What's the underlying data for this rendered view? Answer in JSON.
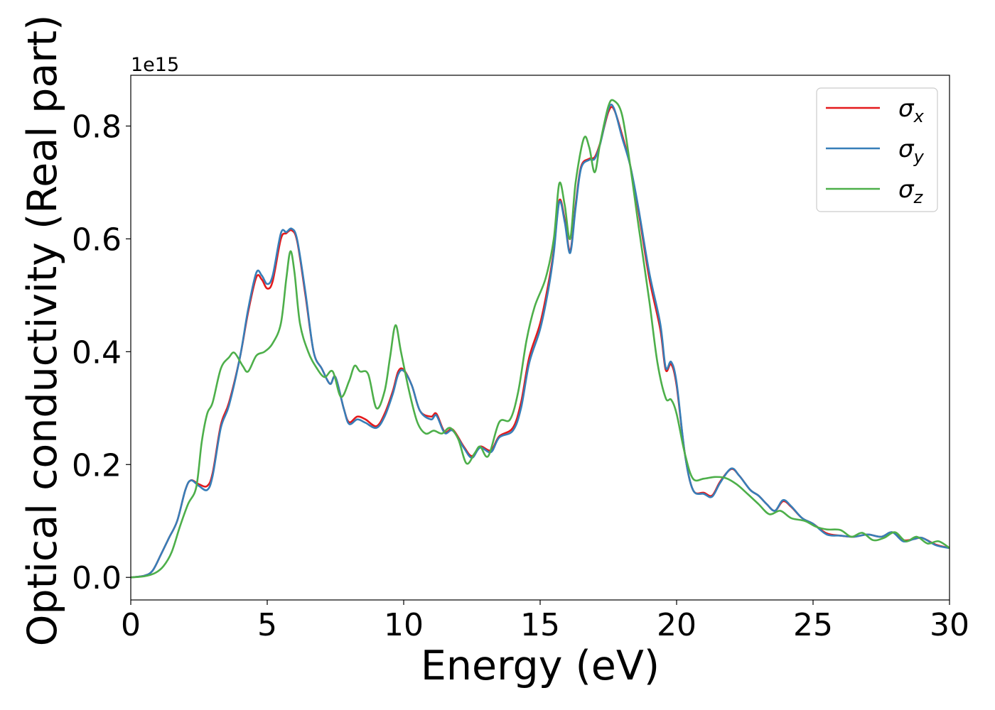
{
  "chart_data": {
    "type": "line",
    "xlabel": "Energy (eV)",
    "ylabel": "Optical conductivity (Real part)",
    "y_offset_label": "1e15",
    "xlim": [
      0,
      30
    ],
    "ylim": [
      -0.04,
      0.89
    ],
    "x_ticks": [
      0,
      5,
      10,
      15,
      20,
      25,
      30
    ],
    "x_tick_labels": [
      "0",
      "5",
      "10",
      "15",
      "20",
      "25",
      "30"
    ],
    "y_ticks": [
      0.0,
      0.2,
      0.4,
      0.6,
      0.8
    ],
    "y_tick_labels": [
      "0.0",
      "0.2",
      "0.4",
      "0.6",
      "0.8"
    ],
    "grid": false,
    "legend_position": "top-right",
    "series": [
      {
        "name": "σ",
        "subscript": "x",
        "color": "#e41a1c",
        "points": [
          [
            0,
            0.0
          ],
          [
            0.5,
            0.003
          ],
          [
            0.8,
            0.012
          ],
          [
            1.1,
            0.04
          ],
          [
            1.4,
            0.07
          ],
          [
            1.7,
            0.1
          ],
          [
            2.0,
            0.155
          ],
          [
            2.2,
            0.172
          ],
          [
            2.5,
            0.165
          ],
          [
            2.8,
            0.162
          ],
          [
            3.0,
            0.185
          ],
          [
            3.3,
            0.27
          ],
          [
            3.6,
            0.31
          ],
          [
            4.0,
            0.39
          ],
          [
            4.3,
            0.47
          ],
          [
            4.6,
            0.532
          ],
          [
            4.8,
            0.528
          ],
          [
            5.0,
            0.512
          ],
          [
            5.2,
            0.525
          ],
          [
            5.5,
            0.6
          ],
          [
            5.7,
            0.61
          ],
          [
            5.9,
            0.615
          ],
          [
            6.1,
            0.595
          ],
          [
            6.4,
            0.5
          ],
          [
            6.7,
            0.4
          ],
          [
            7.0,
            0.37
          ],
          [
            7.3,
            0.343
          ],
          [
            7.5,
            0.355
          ],
          [
            7.8,
            0.3
          ],
          [
            8.0,
            0.275
          ],
          [
            8.3,
            0.285
          ],
          [
            8.6,
            0.28
          ],
          [
            9.0,
            0.268
          ],
          [
            9.3,
            0.29
          ],
          [
            9.6,
            0.33
          ],
          [
            9.8,
            0.365
          ],
          [
            10.0,
            0.368
          ],
          [
            10.3,
            0.34
          ],
          [
            10.6,
            0.295
          ],
          [
            11.0,
            0.285
          ],
          [
            11.2,
            0.29
          ],
          [
            11.5,
            0.258
          ],
          [
            11.8,
            0.262
          ],
          [
            12.2,
            0.232
          ],
          [
            12.5,
            0.215
          ],
          [
            12.8,
            0.232
          ],
          [
            13.2,
            0.225
          ],
          [
            13.5,
            0.25
          ],
          [
            14.0,
            0.265
          ],
          [
            14.3,
            0.31
          ],
          [
            14.6,
            0.39
          ],
          [
            15.0,
            0.45
          ],
          [
            15.3,
            0.52
          ],
          [
            15.5,
            0.58
          ],
          [
            15.7,
            0.668
          ],
          [
            15.9,
            0.635
          ],
          [
            16.1,
            0.578
          ],
          [
            16.3,
            0.66
          ],
          [
            16.5,
            0.728
          ],
          [
            16.8,
            0.742
          ],
          [
            17.0,
            0.745
          ],
          [
            17.2,
            0.77
          ],
          [
            17.5,
            0.825
          ],
          [
            17.7,
            0.83
          ],
          [
            18.0,
            0.785
          ],
          [
            18.3,
            0.73
          ],
          [
            18.6,
            0.65
          ],
          [
            19.0,
            0.53
          ],
          [
            19.4,
            0.44
          ],
          [
            19.6,
            0.368
          ],
          [
            19.8,
            0.378
          ],
          [
            20.0,
            0.34
          ],
          [
            20.3,
            0.22
          ],
          [
            20.6,
            0.155
          ],
          [
            21.0,
            0.15
          ],
          [
            21.3,
            0.145
          ],
          [
            21.6,
            0.17
          ],
          [
            22.0,
            0.192
          ],
          [
            22.3,
            0.18
          ],
          [
            22.7,
            0.155
          ],
          [
            23.0,
            0.145
          ],
          [
            23.3,
            0.13
          ],
          [
            23.6,
            0.118
          ],
          [
            23.9,
            0.135
          ],
          [
            24.2,
            0.125
          ],
          [
            24.6,
            0.105
          ],
          [
            25.0,
            0.095
          ],
          [
            25.5,
            0.078
          ],
          [
            26.0,
            0.074
          ],
          [
            26.5,
            0.072
          ],
          [
            27.0,
            0.076
          ],
          [
            27.5,
            0.072
          ],
          [
            27.9,
            0.08
          ],
          [
            28.3,
            0.066
          ],
          [
            28.7,
            0.068
          ],
          [
            29.0,
            0.07
          ],
          [
            29.5,
            0.058
          ],
          [
            30.0,
            0.052
          ]
        ]
      },
      {
        "name": "σ",
        "subscript": "y",
        "color": "#377eb8",
        "points": [
          [
            0,
            0.0
          ],
          [
            0.5,
            0.003
          ],
          [
            0.8,
            0.012
          ],
          [
            1.1,
            0.04
          ],
          [
            1.4,
            0.07
          ],
          [
            1.7,
            0.1
          ],
          [
            2.0,
            0.155
          ],
          [
            2.2,
            0.172
          ],
          [
            2.5,
            0.162
          ],
          [
            2.8,
            0.155
          ],
          [
            3.0,
            0.18
          ],
          [
            3.3,
            0.265
          ],
          [
            3.6,
            0.305
          ],
          [
            4.0,
            0.39
          ],
          [
            4.3,
            0.475
          ],
          [
            4.6,
            0.54
          ],
          [
            4.8,
            0.535
          ],
          [
            5.0,
            0.52
          ],
          [
            5.2,
            0.535
          ],
          [
            5.5,
            0.61
          ],
          [
            5.7,
            0.612
          ],
          [
            5.9,
            0.618
          ],
          [
            6.1,
            0.598
          ],
          [
            6.4,
            0.505
          ],
          [
            6.7,
            0.4
          ],
          [
            7.0,
            0.37
          ],
          [
            7.3,
            0.343
          ],
          [
            7.5,
            0.355
          ],
          [
            7.8,
            0.3
          ],
          [
            8.0,
            0.272
          ],
          [
            8.3,
            0.28
          ],
          [
            8.6,
            0.274
          ],
          [
            9.0,
            0.265
          ],
          [
            9.3,
            0.285
          ],
          [
            9.6,
            0.325
          ],
          [
            9.8,
            0.36
          ],
          [
            10.0,
            0.366
          ],
          [
            10.3,
            0.34
          ],
          [
            10.6,
            0.295
          ],
          [
            11.0,
            0.28
          ],
          [
            11.2,
            0.287
          ],
          [
            11.5,
            0.256
          ],
          [
            11.8,
            0.26
          ],
          [
            12.2,
            0.23
          ],
          [
            12.5,
            0.212
          ],
          [
            12.8,
            0.23
          ],
          [
            13.2,
            0.222
          ],
          [
            13.5,
            0.248
          ],
          [
            14.0,
            0.26
          ],
          [
            14.3,
            0.3
          ],
          [
            14.6,
            0.38
          ],
          [
            15.0,
            0.44
          ],
          [
            15.3,
            0.51
          ],
          [
            15.5,
            0.575
          ],
          [
            15.7,
            0.665
          ],
          [
            15.9,
            0.63
          ],
          [
            16.1,
            0.575
          ],
          [
            16.3,
            0.655
          ],
          [
            16.5,
            0.725
          ],
          [
            16.8,
            0.74
          ],
          [
            17.0,
            0.742
          ],
          [
            17.2,
            0.768
          ],
          [
            17.5,
            0.83
          ],
          [
            17.7,
            0.832
          ],
          [
            18.0,
            0.78
          ],
          [
            18.3,
            0.73
          ],
          [
            18.6,
            0.655
          ],
          [
            19.0,
            0.54
          ],
          [
            19.4,
            0.45
          ],
          [
            19.6,
            0.372
          ],
          [
            19.8,
            0.382
          ],
          [
            20.0,
            0.345
          ],
          [
            20.3,
            0.22
          ],
          [
            20.6,
            0.155
          ],
          [
            21.0,
            0.148
          ],
          [
            21.3,
            0.143
          ],
          [
            21.6,
            0.168
          ],
          [
            22.0,
            0.193
          ],
          [
            22.3,
            0.18
          ],
          [
            22.7,
            0.155
          ],
          [
            23.0,
            0.145
          ],
          [
            23.3,
            0.13
          ],
          [
            23.6,
            0.118
          ],
          [
            23.9,
            0.137
          ],
          [
            24.2,
            0.126
          ],
          [
            24.6,
            0.105
          ],
          [
            25.0,
            0.095
          ],
          [
            25.5,
            0.076
          ],
          [
            26.0,
            0.074
          ],
          [
            26.5,
            0.072
          ],
          [
            27.0,
            0.076
          ],
          [
            27.5,
            0.072
          ],
          [
            27.9,
            0.08
          ],
          [
            28.3,
            0.064
          ],
          [
            28.7,
            0.068
          ],
          [
            29.0,
            0.07
          ],
          [
            29.5,
            0.057
          ],
          [
            30.0,
            0.052
          ]
        ]
      },
      {
        "name": "σ",
        "subscript": "z",
        "color": "#4daf4a",
        "points": [
          [
            0,
            0.0
          ],
          [
            0.5,
            0.002
          ],
          [
            0.9,
            0.008
          ],
          [
            1.2,
            0.02
          ],
          [
            1.5,
            0.045
          ],
          [
            1.8,
            0.09
          ],
          [
            2.1,
            0.13
          ],
          [
            2.4,
            0.16
          ],
          [
            2.6,
            0.24
          ],
          [
            2.8,
            0.29
          ],
          [
            3.0,
            0.31
          ],
          [
            3.3,
            0.37
          ],
          [
            3.6,
            0.39
          ],
          [
            3.8,
            0.398
          ],
          [
            4.1,
            0.375
          ],
          [
            4.3,
            0.365
          ],
          [
            4.6,
            0.393
          ],
          [
            4.9,
            0.4
          ],
          [
            5.2,
            0.415
          ],
          [
            5.5,
            0.45
          ],
          [
            5.7,
            0.53
          ],
          [
            5.85,
            0.578
          ],
          [
            6.0,
            0.54
          ],
          [
            6.2,
            0.45
          ],
          [
            6.5,
            0.4
          ],
          [
            6.8,
            0.372
          ],
          [
            7.1,
            0.355
          ],
          [
            7.4,
            0.365
          ],
          [
            7.7,
            0.32
          ],
          [
            8.0,
            0.348
          ],
          [
            8.2,
            0.375
          ],
          [
            8.4,
            0.365
          ],
          [
            8.7,
            0.36
          ],
          [
            9.0,
            0.3
          ],
          [
            9.3,
            0.33
          ],
          [
            9.5,
            0.39
          ],
          [
            9.7,
            0.447
          ],
          [
            9.9,
            0.4
          ],
          [
            10.2,
            0.33
          ],
          [
            10.5,
            0.275
          ],
          [
            10.8,
            0.255
          ],
          [
            11.1,
            0.26
          ],
          [
            11.4,
            0.255
          ],
          [
            11.7,
            0.265
          ],
          [
            12.0,
            0.245
          ],
          [
            12.3,
            0.202
          ],
          [
            12.6,
            0.22
          ],
          [
            12.8,
            0.232
          ],
          [
            13.1,
            0.215
          ],
          [
            13.5,
            0.275
          ],
          [
            13.9,
            0.28
          ],
          [
            14.2,
            0.33
          ],
          [
            14.5,
            0.42
          ],
          [
            14.8,
            0.48
          ],
          [
            15.2,
            0.53
          ],
          [
            15.5,
            0.6
          ],
          [
            15.7,
            0.698
          ],
          [
            15.9,
            0.66
          ],
          [
            16.1,
            0.6
          ],
          [
            16.3,
            0.7
          ],
          [
            16.6,
            0.778
          ],
          [
            16.8,
            0.762
          ],
          [
            17.0,
            0.718
          ],
          [
            17.2,
            0.77
          ],
          [
            17.5,
            0.835
          ],
          [
            17.7,
            0.845
          ],
          [
            18.0,
            0.82
          ],
          [
            18.3,
            0.73
          ],
          [
            18.6,
            0.625
          ],
          [
            19.0,
            0.49
          ],
          [
            19.3,
            0.38
          ],
          [
            19.6,
            0.318
          ],
          [
            19.8,
            0.315
          ],
          [
            20.0,
            0.29
          ],
          [
            20.3,
            0.22
          ],
          [
            20.6,
            0.175
          ],
          [
            21.0,
            0.175
          ],
          [
            21.4,
            0.178
          ],
          [
            21.8,
            0.176
          ],
          [
            22.2,
            0.165
          ],
          [
            22.6,
            0.148
          ],
          [
            23.0,
            0.13
          ],
          [
            23.4,
            0.112
          ],
          [
            23.8,
            0.118
          ],
          [
            24.2,
            0.105
          ],
          [
            24.7,
            0.1
          ],
          [
            25.1,
            0.09
          ],
          [
            25.5,
            0.085
          ],
          [
            26.0,
            0.084
          ],
          [
            26.4,
            0.072
          ],
          [
            26.8,
            0.079
          ],
          [
            27.2,
            0.066
          ],
          [
            27.6,
            0.07
          ],
          [
            28.0,
            0.08
          ],
          [
            28.4,
            0.064
          ],
          [
            28.8,
            0.072
          ],
          [
            29.2,
            0.06
          ],
          [
            29.6,
            0.064
          ],
          [
            30.0,
            0.052
          ]
        ]
      }
    ]
  }
}
